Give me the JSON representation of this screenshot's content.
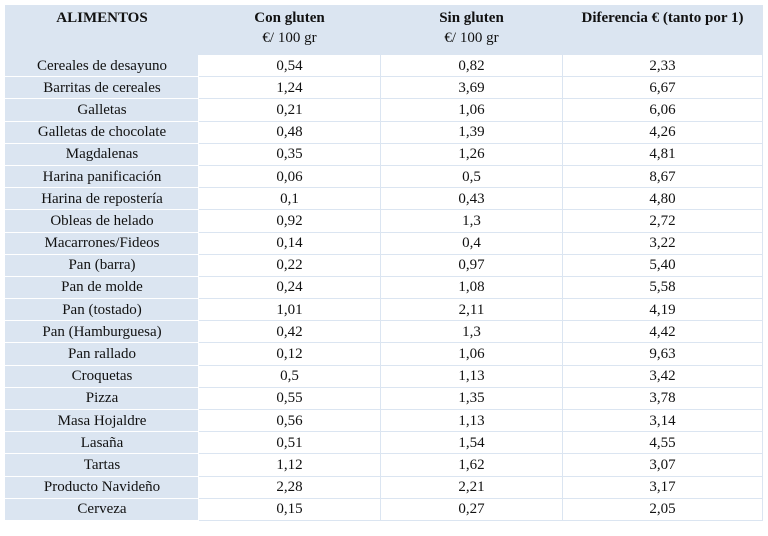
{
  "table": {
    "header": {
      "food": "ALIMENTOS",
      "con": "Con gluten",
      "con_unit": "€/ 100 gr",
      "sin": "Sin gluten",
      "sin_unit": "€/ 100 gr",
      "diff": "Diferencia € (tanto por 1)"
    },
    "rows": [
      [
        "Cereales de desayuno",
        "0,54",
        "0,82",
        "2,33"
      ],
      [
        "Barritas de cereales",
        "1,24",
        "3,69",
        "6,67"
      ],
      [
        "Galletas",
        "0,21",
        "1,06",
        "6,06"
      ],
      [
        "Galletas de chocolate",
        "0,48",
        "1,39",
        "4,26"
      ],
      [
        "Magdalenas",
        "0,35",
        "1,26",
        "4,81"
      ],
      [
        "Harina panificación",
        "0,06",
        "0,5",
        "8,67"
      ],
      [
        "Harina de repostería",
        "0,1",
        "0,43",
        "4,80"
      ],
      [
        "Obleas de helado",
        "0,92",
        "1,3",
        "2,72"
      ],
      [
        "Macarrones/Fideos",
        "0,14",
        "0,4",
        "3,22"
      ],
      [
        "Pan (barra)",
        "0,22",
        "0,97",
        "5,40"
      ],
      [
        "Pan de molde",
        "0,24",
        "1,08",
        "5,58"
      ],
      [
        "Pan (tostado)",
        "1,01",
        "2,11",
        "4,19"
      ],
      [
        "Pan (Hamburguesa)",
        "0,42",
        "1,3",
        "4,42"
      ],
      [
        "Pan rallado",
        "0,12",
        "1,06",
        "9,63"
      ],
      [
        "Croquetas",
        "0,5",
        "1,13",
        "3,42"
      ],
      [
        "Pizza",
        "0,55",
        "1,35",
        "3,78"
      ],
      [
        "Masa Hojaldre",
        "0,56",
        "1,13",
        "3,14"
      ],
      [
        "Lasaña",
        "0,51",
        "1,54",
        "4,55"
      ],
      [
        "Tartas",
        "1,12",
        "1,62",
        "3,07"
      ],
      [
        "Producto Navideño",
        "2,28",
        "2,21",
        "3,17"
      ],
      [
        "Cerveza",
        "0,15",
        "0,27",
        "2,05"
      ]
    ]
  }
}
